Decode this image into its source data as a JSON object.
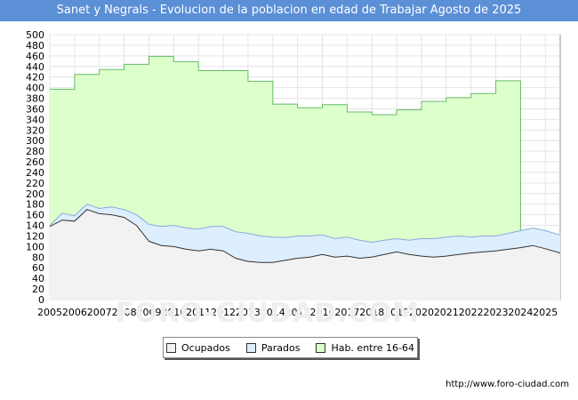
{
  "title": "Sanet y Negrals - Evolucion de la poblacion en edad de Trabajar Agosto de 2025",
  "watermark": "FORO-CIUDAD.COM",
  "source": "http://www.foro-ciudad.com",
  "legend": [
    {
      "label": "Ocupados",
      "color": "#f2f2f2"
    },
    {
      "label": "Parados",
      "color": "#ddeeff"
    },
    {
      "label": "Hab. entre 16-64",
      "color": "#ddffcc"
    }
  ],
  "chart_data": {
    "type": "area",
    "title": "Sanet y Negrals - Evolucion de la poblacion en edad de Trabajar Agosto de 2025",
    "xlabel": "",
    "ylabel": "",
    "xlim": [
      2005,
      2025.6
    ],
    "ylim": [
      0,
      500
    ],
    "y_ticks": [
      0,
      20,
      40,
      60,
      80,
      100,
      120,
      140,
      160,
      180,
      200,
      220,
      240,
      260,
      280,
      300,
      320,
      340,
      360,
      380,
      400,
      420,
      440,
      460,
      480,
      500
    ],
    "x_ticks": [
      2005,
      2006,
      2007,
      2008,
      2009,
      2010,
      2011,
      2012,
      2013,
      2014,
      2015,
      2016,
      2017,
      2018,
      2019,
      2020,
      2021,
      2022,
      2023,
      2024,
      2025
    ],
    "grid": true,
    "legend_position": "bottom",
    "series": [
      {
        "name": "Hab. entre 16-64",
        "color": "#ddffcc",
        "line_color": "#66bb66",
        "step": true,
        "x": [
          2005,
          2006,
          2007,
          2008,
          2009,
          2010,
          2011,
          2012,
          2013,
          2014,
          2015,
          2016,
          2017,
          2018,
          2019,
          2020,
          2021,
          2022,
          2023,
          2024
        ],
        "values": [
          397,
          425,
          434,
          444,
          459,
          449,
          432,
          432,
          412,
          369,
          362,
          368,
          354,
          349,
          358,
          374,
          381,
          389,
          413,
          126
        ]
      },
      {
        "name": "Parados",
        "color": "#ddeeff",
        "line_color": "#88aadd",
        "x": [
          2005,
          2005.5,
          2006,
          2006.5,
          2007,
          2007.5,
          2008,
          2008.5,
          2009,
          2009.5,
          2010,
          2010.5,
          2011,
          2011.5,
          2012,
          2012.5,
          2013,
          2013.5,
          2014,
          2014.5,
          2015,
          2015.5,
          2016,
          2016.5,
          2017,
          2017.5,
          2018,
          2018.5,
          2019,
          2019.5,
          2020,
          2020.5,
          2021,
          2021.5,
          2022,
          2022.5,
          2023,
          2023.5,
          2024,
          2024.5,
          2025,
          2025.6
        ],
        "values": [
          140,
          163,
          158,
          180,
          172,
          175,
          170,
          160,
          142,
          138,
          140,
          135,
          133,
          138,
          138,
          128,
          125,
          120,
          118,
          117,
          120,
          120,
          122,
          115,
          118,
          112,
          108,
          112,
          115,
          112,
          115,
          115,
          118,
          120,
          118,
          120,
          120,
          125,
          130,
          135,
          130,
          122
        ]
      },
      {
        "name": "Ocupados",
        "color": "#f2f2f2",
        "line_color": "#333333",
        "x": [
          2005,
          2005.5,
          2006,
          2006.5,
          2007,
          2007.5,
          2008,
          2008.5,
          2009,
          2009.5,
          2010,
          2010.5,
          2011,
          2011.5,
          2012,
          2012.5,
          2013,
          2013.5,
          2014,
          2014.5,
          2015,
          2015.5,
          2016,
          2016.5,
          2017,
          2017.5,
          2018,
          2018.5,
          2019,
          2019.5,
          2020,
          2020.5,
          2021,
          2021.5,
          2022,
          2022.5,
          2023,
          2023.5,
          2024,
          2024.5,
          2025,
          2025.6
        ],
        "values": [
          138,
          150,
          148,
          170,
          162,
          160,
          155,
          140,
          110,
          102,
          100,
          95,
          92,
          95,
          92,
          78,
          72,
          70,
          70,
          74,
          78,
          80,
          85,
          80,
          82,
          78,
          80,
          85,
          90,
          85,
          82,
          80,
          82,
          85,
          88,
          90,
          92,
          95,
          98,
          102,
          96,
          88
        ]
      }
    ]
  }
}
